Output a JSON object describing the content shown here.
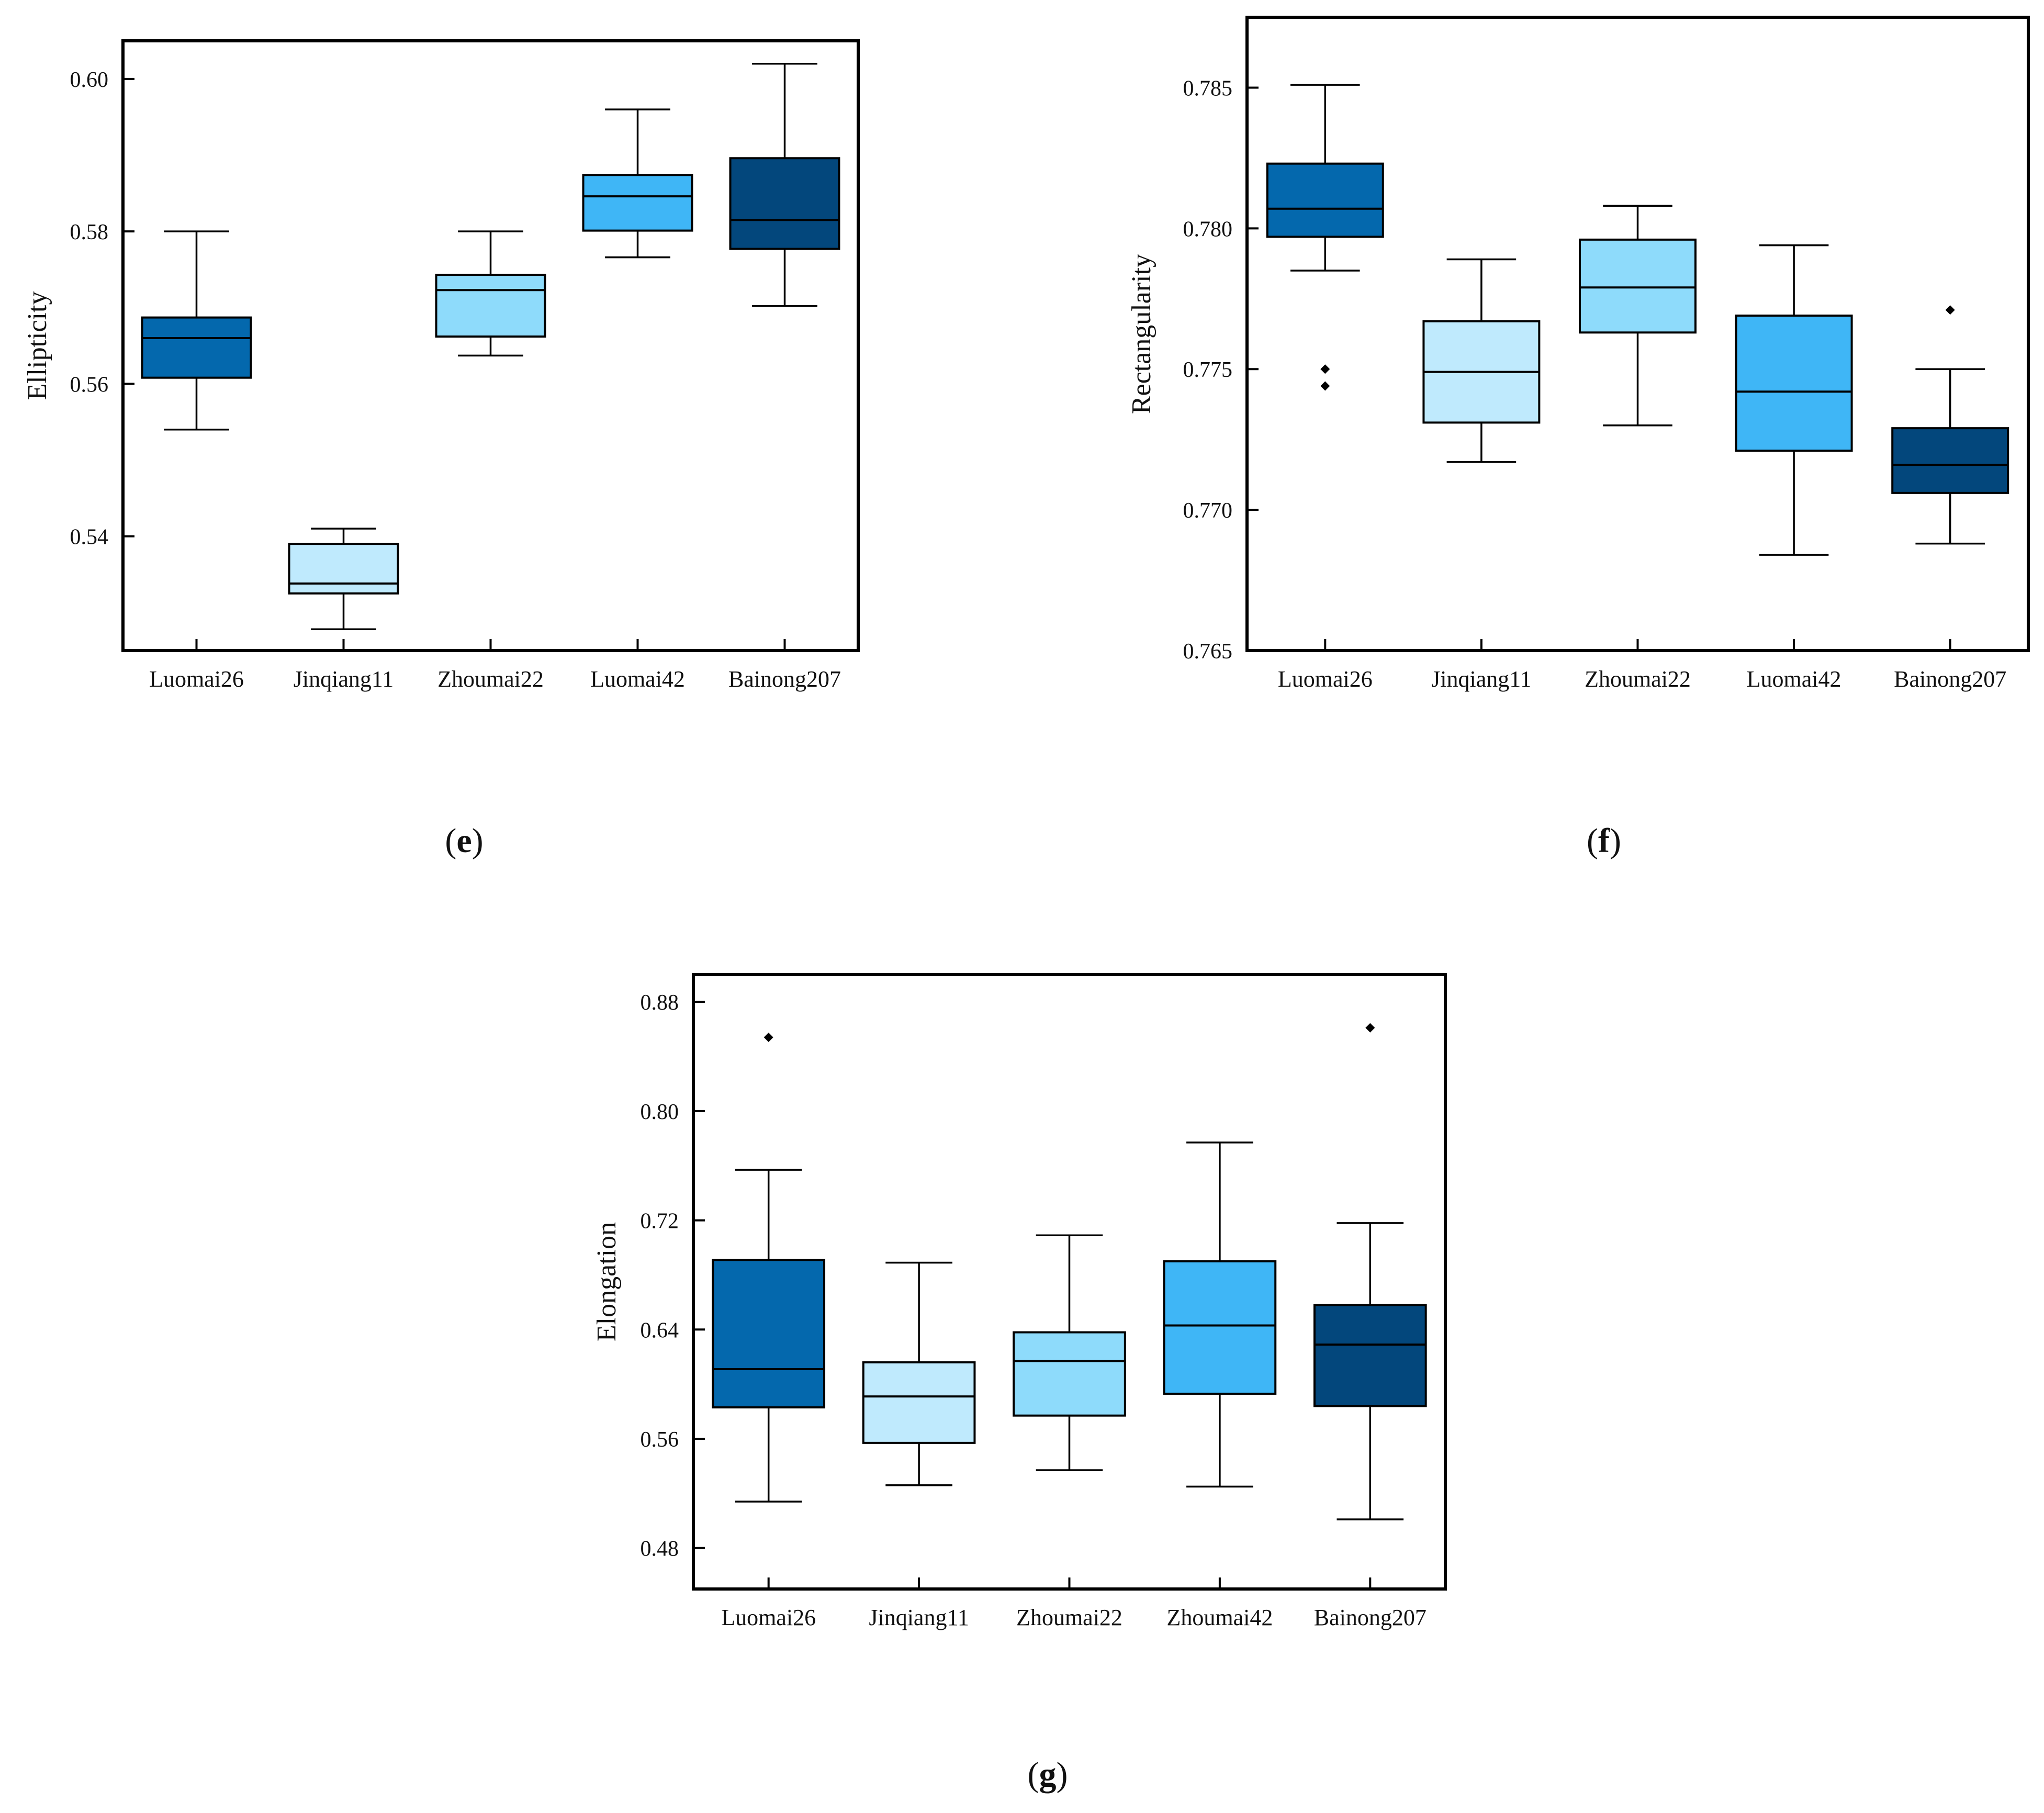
{
  "colors": {
    "Luomai26": "#0468ad",
    "Jinqiang11": "#bfeafd",
    "Zhoumai22": "#8edbfb",
    "Luomai42": "#3fb6f6",
    "Zhoumai42": "#3fb6f6",
    "Bainong207": "#03477c"
  },
  "chart_data": [
    {
      "id": "e",
      "panel_label": "(e)",
      "type": "box",
      "title": "",
      "xlabel": "",
      "ylabel": "Ellipticity",
      "ylim": [
        0.525,
        0.605
      ],
      "yticks": [
        0.54,
        0.56,
        0.58,
        0.6
      ],
      "ytick_labels": [
        "0.54",
        "0.56",
        "0.58",
        "0.60"
      ],
      "categories": [
        "Luomai26",
        "Jinqiang11",
        "Zhoumai22",
        "Luomai42",
        "Bainong207"
      ],
      "boxes": [
        {
          "min": 0.554,
          "q1": 0.5608,
          "median": 0.566,
          "q3": 0.5687,
          "max": 0.58,
          "outliers": []
        },
        {
          "min": 0.5278,
          "q1": 0.5325,
          "median": 0.5338,
          "q3": 0.539,
          "max": 0.541,
          "outliers": []
        },
        {
          "min": 0.5637,
          "q1": 0.5662,
          "median": 0.5723,
          "q3": 0.5743,
          "max": 0.58,
          "outliers": []
        },
        {
          "min": 0.5766,
          "q1": 0.5801,
          "median": 0.5846,
          "q3": 0.5874,
          "max": 0.596,
          "outliers": []
        },
        {
          "min": 0.5702,
          "q1": 0.5777,
          "median": 0.5815,
          "q3": 0.5896,
          "max": 0.602,
          "outliers": []
        }
      ]
    },
    {
      "id": "f",
      "panel_label": "(f)",
      "type": "box",
      "title": "",
      "xlabel": "",
      "ylabel": "Rectangularity",
      "ylim": [
        0.765,
        0.7875
      ],
      "yticks": [
        0.765,
        0.77,
        0.775,
        0.78,
        0.785
      ],
      "ytick_labels": [
        "0.765",
        "0.770",
        "0.775",
        "0.780",
        "0.785"
      ],
      "categories": [
        "Luomai26",
        "Jinqiang11",
        "Zhoumai22",
        "Luomai42",
        "Bainong207"
      ],
      "boxes": [
        {
          "min": 0.7785,
          "q1": 0.7797,
          "median": 0.7807,
          "q3": 0.7823,
          "max": 0.7851,
          "outliers": [
            0.775,
            0.7744
          ]
        },
        {
          "min": 0.7717,
          "q1": 0.7731,
          "median": 0.7749,
          "q3": 0.7767,
          "max": 0.7789,
          "outliers": []
        },
        {
          "min": 0.773,
          "q1": 0.7763,
          "median": 0.7779,
          "q3": 0.7796,
          "max": 0.7808,
          "outliers": []
        },
        {
          "min": 0.7684,
          "q1": 0.7721,
          "median": 0.7742,
          "q3": 0.7769,
          "max": 0.7794,
          "outliers": []
        },
        {
          "min": 0.7688,
          "q1": 0.7706,
          "median": 0.7716,
          "q3": 0.7729,
          "max": 0.775,
          "outliers": [
            0.7771
          ]
        }
      ]
    },
    {
      "id": "g",
      "panel_label": "(g)",
      "type": "box",
      "title": "",
      "xlabel": "",
      "ylabel": "Elongation",
      "ylim": [
        0.45,
        0.9
      ],
      "yticks": [
        0.48,
        0.56,
        0.64,
        0.72,
        0.8,
        0.88
      ],
      "ytick_labels": [
        "0.48",
        "0.56",
        "0.64",
        "0.72",
        "0.80",
        "0.88"
      ],
      "categories": [
        "Luomai26",
        "Jinqiang11",
        "Zhoumai22",
        "Zhoumai42",
        "Bainong207"
      ],
      "boxes": [
        {
          "min": 0.514,
          "q1": 0.583,
          "median": 0.611,
          "q3": 0.691,
          "max": 0.757,
          "outliers": [
            0.854
          ]
        },
        {
          "min": 0.526,
          "q1": 0.557,
          "median": 0.591,
          "q3": 0.616,
          "max": 0.689,
          "outliers": []
        },
        {
          "min": 0.537,
          "q1": 0.577,
          "median": 0.617,
          "q3": 0.638,
          "max": 0.709,
          "outliers": []
        },
        {
          "min": 0.525,
          "q1": 0.593,
          "median": 0.643,
          "q3": 0.69,
          "max": 0.777,
          "outliers": []
        },
        {
          "min": 0.501,
          "q1": 0.584,
          "median": 0.629,
          "q3": 0.658,
          "max": 0.718,
          "outliers": [
            0.861
          ]
        }
      ]
    }
  ]
}
